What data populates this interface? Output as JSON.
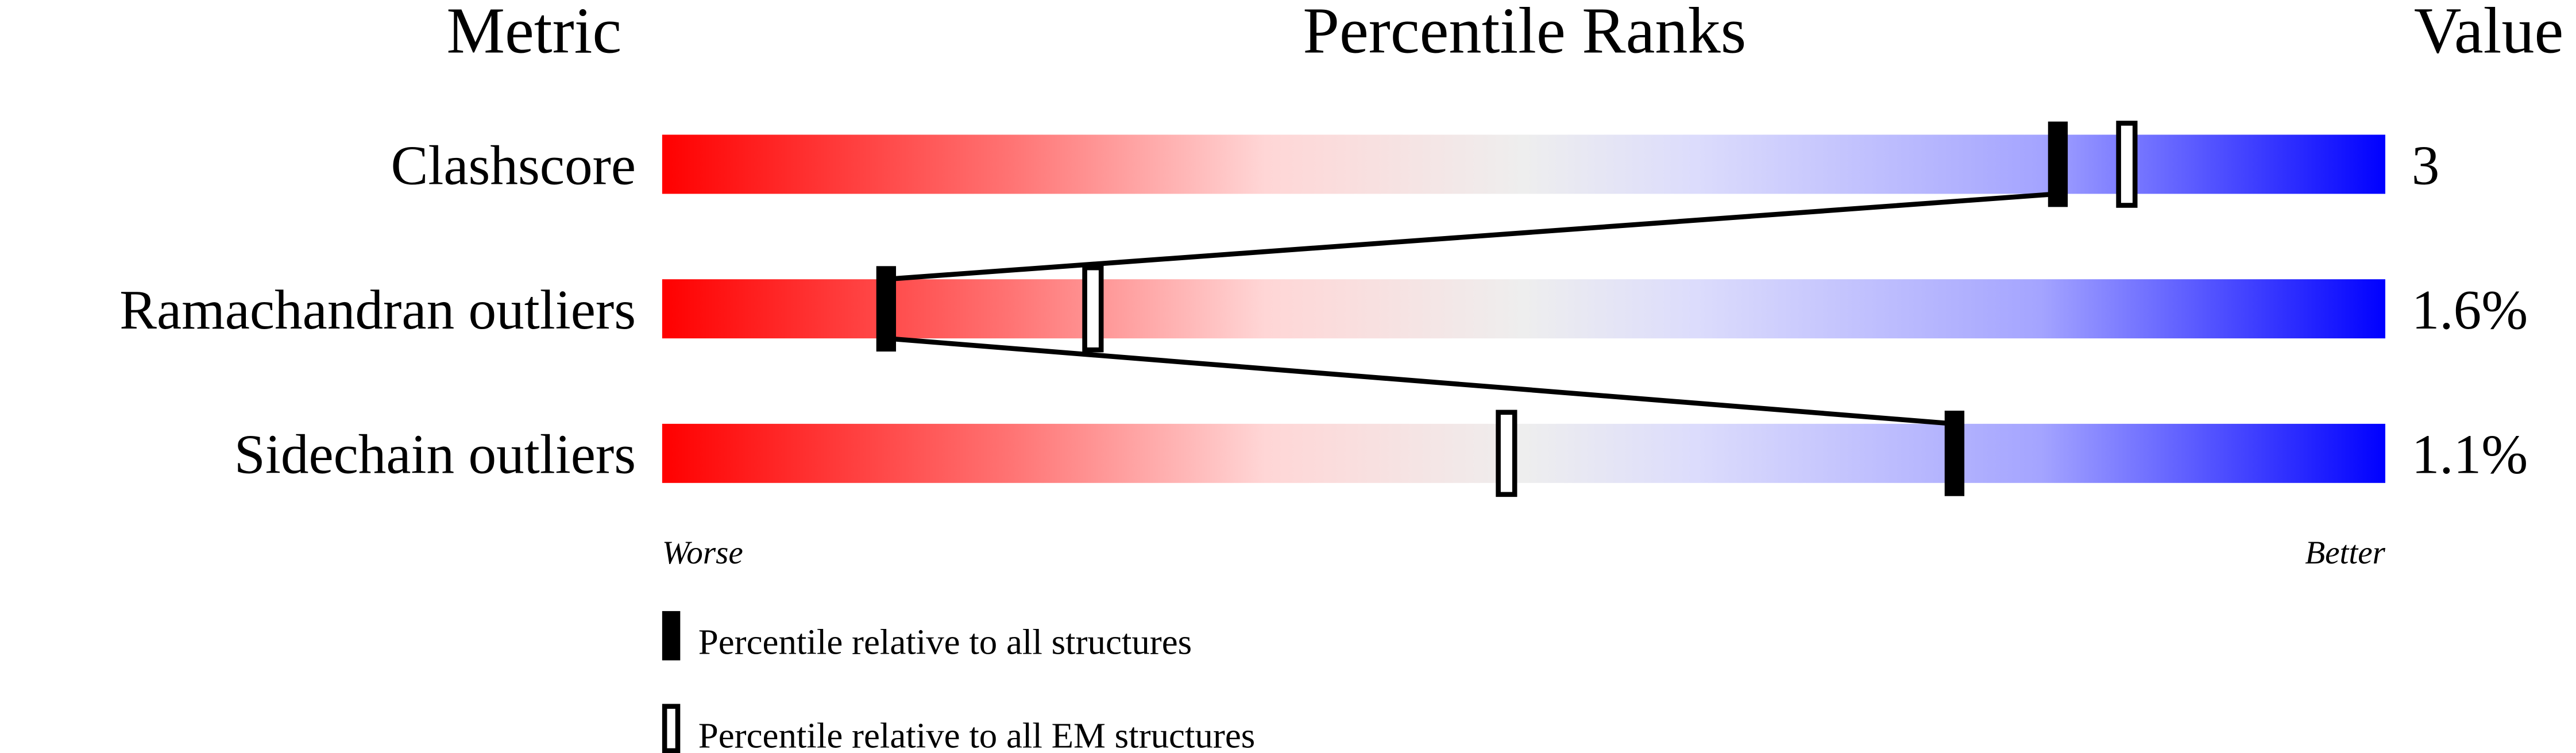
{
  "chart_data": {
    "type": "percentile-slider",
    "headers": {
      "metric": "Metric",
      "ranks": "Percentile Ranks",
      "value": "Value"
    },
    "xlim": [
      0,
      100
    ],
    "axis_labels": {
      "left": "Worse",
      "right": "Better"
    },
    "gradient_colors": [
      "#ff0000",
      "#ff7272",
      "#ffd6d6",
      "#eeeeee",
      "#dcdcfc",
      "#a4a4ff",
      "#0000ff"
    ],
    "rows": [
      {
        "metric": "Clashscore",
        "value": "3",
        "percentile_all": 81,
        "percentile_em": 85
      },
      {
        "metric": "Ramachandran outliers",
        "value": "1.6%",
        "percentile_all": 13,
        "percentile_em": 25
      },
      {
        "metric": "Sidechain outliers",
        "value": "1.1%",
        "percentile_all": 75,
        "percentile_em": 49
      }
    ],
    "legend": [
      {
        "marker": "filled",
        "label": "Percentile relative to all structures"
      },
      {
        "marker": "open",
        "label": "Percentile relative to all EM structures"
      }
    ]
  }
}
